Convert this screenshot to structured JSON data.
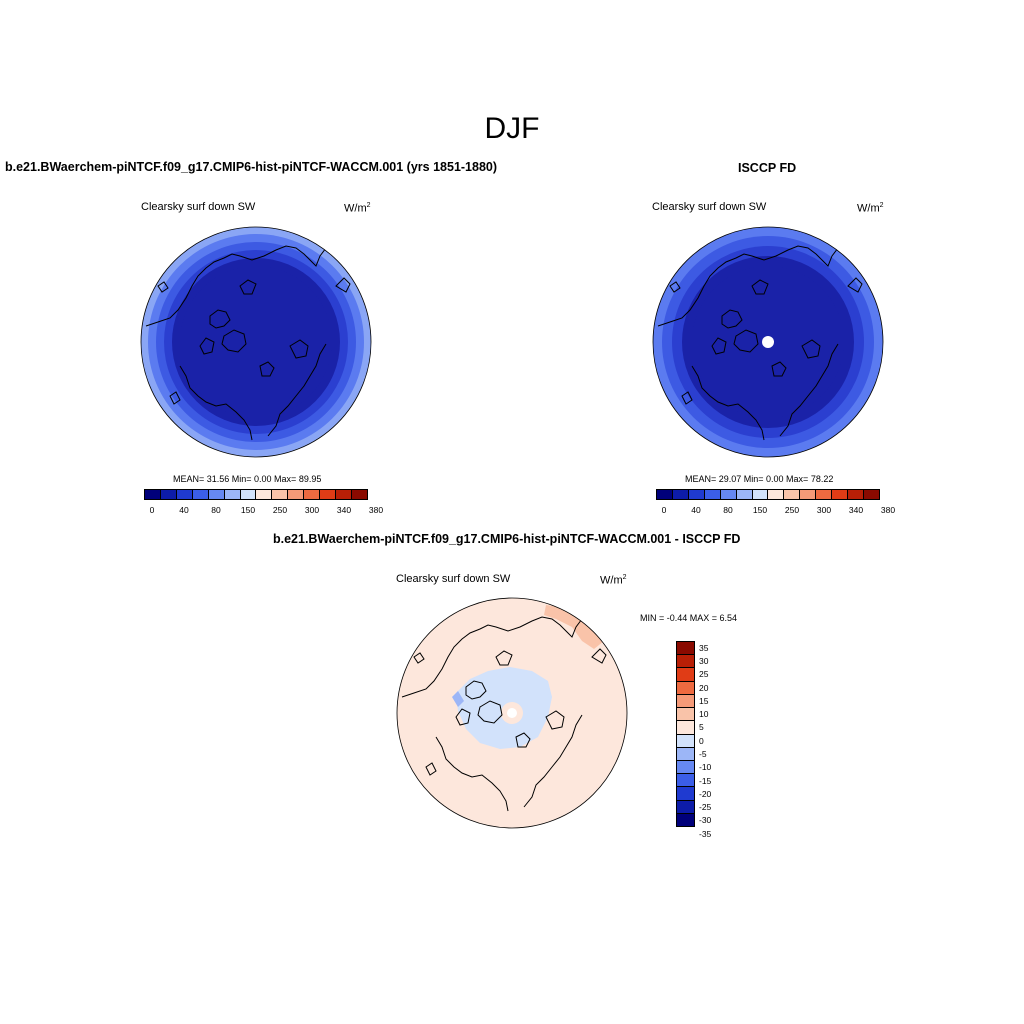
{
  "title": "DJF",
  "panels": {
    "model": {
      "title": "b.e21.BWaerchem-piNTCF.f09_g17.CMIP6-hist-piNTCF-WACCM.001 (yrs 1851-1880)",
      "variable": "Clearsky surf down SW",
      "units": "W/m",
      "units_exp": "2",
      "stats": "MEAN=  31.56  Min=    0.00  Max=  89.95",
      "ring_colors": [
        "#1a22a8",
        "#2b3fd0",
        "#3d5ae3",
        "#5b7bf0",
        "#8aa6f5"
      ]
    },
    "obs": {
      "title": "ISCCP FD",
      "variable": "Clearsky surf down SW",
      "units": "W/m",
      "units_exp": "2",
      "stats": "MEAN=  29.07  Min=    0.00  Max=  78.22",
      "ring_colors": [
        "#1a22a8",
        "#2b3fd0",
        "#3d5ae3",
        "#5b7bf0"
      ]
    },
    "diff": {
      "title": "b.e21.BWaerchem-piNTCF.f09_g17.CMIP6-hist-piNTCF-WACCM.001 - ISCCP FD",
      "variable": "Clearsky surf down SW",
      "units": "W/m",
      "units_exp": "2",
      "stats": "MIN =  -0.44 MAX =   6.54"
    }
  },
  "colorbar_top": {
    "colors": [
      "#00007a",
      "#0d1ca8",
      "#1f3ad0",
      "#3b5ee8",
      "#6688f2",
      "#9cb6f7",
      "#d2e2fb",
      "#fde7dc",
      "#f9c3a9",
      "#f59a78",
      "#ee6a40",
      "#e03c16",
      "#b81f06",
      "#8a0a00"
    ],
    "ticks": [
      "0",
      "40",
      "80",
      "150",
      "250",
      "300",
      "340",
      "380"
    ]
  },
  "colorbar_diff": {
    "colors": [
      "#8a0a00",
      "#b81f06",
      "#e03c16",
      "#ee6a40",
      "#f59a78",
      "#f9c3a9",
      "#fde7dc",
      "#d2e2fb",
      "#9cb6f7",
      "#6688f2",
      "#3b5ee8",
      "#1f3ad0",
      "#0d1ca8",
      "#00007a"
    ],
    "ticks": [
      "35",
      "30",
      "25",
      "20",
      "15",
      "10",
      "5",
      "0",
      "-5",
      "-10",
      "-15",
      "-20",
      "-25",
      "-30",
      "-35"
    ]
  }
}
